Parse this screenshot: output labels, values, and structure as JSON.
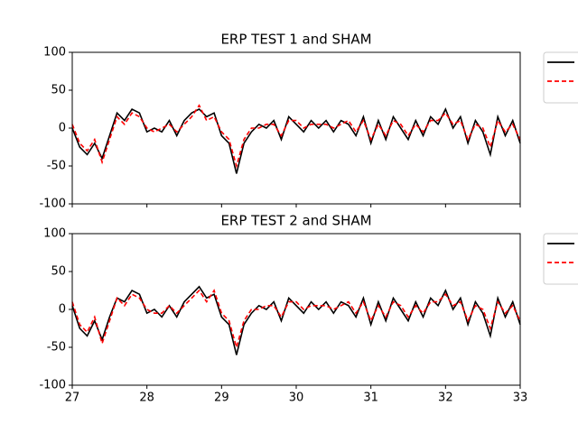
{
  "chart_data": [
    {
      "type": "line",
      "title": "ERP TEST 1 and SHAM",
      "sharex": true,
      "x": [
        27,
        27.1,
        27.2,
        27.3,
        27.4,
        27.5,
        27.6,
        27.7,
        27.8,
        27.9,
        28,
        28.1,
        28.2,
        28.3,
        28.4,
        28.5,
        28.6,
        28.7,
        28.8,
        28.9,
        29,
        29.1,
        29.2,
        29.3,
        29.4,
        29.5,
        29.6,
        29.7,
        29.8,
        29.9,
        30,
        30.1,
        30.2,
        30.3,
        30.4,
        30.5,
        30.6,
        30.7,
        30.8,
        30.9,
        31,
        31.1,
        31.2,
        31.3,
        31.4,
        31.5,
        31.6,
        31.7,
        31.8,
        31.9,
        32,
        32.1,
        32.2,
        32.3,
        32.4,
        32.5,
        32.6,
        32.7,
        32.8,
        32.9,
        33
      ],
      "series": [
        {
          "color": "#000000",
          "dash": false,
          "values": [
            0,
            -25,
            -35,
            -20,
            -40,
            -10,
            20,
            10,
            25,
            20,
            -5,
            0,
            -5,
            10,
            -10,
            10,
            20,
            25,
            15,
            20,
            -10,
            -20,
            -60,
            -20,
            -5,
            5,
            0,
            10,
            -15,
            15,
            5,
            -5,
            10,
            0,
            10,
            -5,
            10,
            5,
            -10,
            15,
            -20,
            10,
            -15,
            15,
            0,
            -15,
            10,
            -10,
            15,
            5,
            25,
            0,
            15,
            -20,
            10,
            -5,
            -35,
            15,
            -10,
            10,
            -20
          ]
        },
        {
          "color": "#ff0000",
          "dash": true,
          "values": [
            5,
            -20,
            -30,
            -15,
            -45,
            -15,
            15,
            5,
            20,
            15,
            0,
            -5,
            0,
            5,
            -5,
            5,
            15,
            30,
            10,
            15,
            -5,
            -15,
            -50,
            -15,
            0,
            0,
            5,
            5,
            -10,
            10,
            10,
            0,
            5,
            5,
            5,
            0,
            5,
            10,
            -5,
            10,
            -15,
            5,
            -10,
            10,
            5,
            -10,
            5,
            -5,
            10,
            10,
            20,
            5,
            10,
            -15,
            5,
            0,
            -25,
            10,
            -5,
            5,
            -15
          ]
        }
      ],
      "xlim": [
        27,
        33
      ],
      "ylim": [
        -100,
        100
      ],
      "yticks": [
        -100,
        -50,
        0,
        50,
        100
      ]
    },
    {
      "type": "line",
      "title": "ERP TEST 2 and SHAM",
      "x": [
        27,
        27.1,
        27.2,
        27.3,
        27.4,
        27.5,
        27.6,
        27.7,
        27.8,
        27.9,
        28,
        28.1,
        28.2,
        28.3,
        28.4,
        28.5,
        28.6,
        28.7,
        28.8,
        28.9,
        29,
        29.1,
        29.2,
        29.3,
        29.4,
        29.5,
        29.6,
        29.7,
        29.8,
        29.9,
        30,
        30.1,
        30.2,
        30.3,
        30.4,
        30.5,
        30.6,
        30.7,
        30.8,
        30.9,
        31,
        31.1,
        31.2,
        31.3,
        31.4,
        31.5,
        31.6,
        31.7,
        31.8,
        31.9,
        32,
        32.1,
        32.2,
        32.3,
        32.4,
        32.5,
        32.6,
        32.7,
        32.8,
        32.9,
        33
      ],
      "series": [
        {
          "color": "#000000",
          "dash": false,
          "values": [
            5,
            -25,
            -35,
            -15,
            -40,
            -10,
            15,
            10,
            25,
            20,
            -5,
            0,
            -10,
            5,
            -10,
            10,
            20,
            30,
            15,
            20,
            -10,
            -20,
            -60,
            -20,
            -5,
            5,
            0,
            10,
            -15,
            15,
            5,
            -5,
            10,
            0,
            10,
            -5,
            10,
            5,
            -10,
            15,
            -20,
            10,
            -15,
            15,
            0,
            -15,
            10,
            -10,
            15,
            5,
            25,
            0,
            15,
            -20,
            10,
            -5,
            -35,
            15,
            -10,
            10,
            -20
          ]
        },
        {
          "color": "#ff0000",
          "dash": true,
          "values": [
            10,
            -20,
            -30,
            -10,
            -45,
            -15,
            15,
            5,
            20,
            15,
            0,
            -5,
            -5,
            5,
            -5,
            5,
            15,
            25,
            10,
            25,
            -5,
            -15,
            -50,
            -15,
            0,
            0,
            5,
            5,
            -10,
            10,
            10,
            0,
            5,
            5,
            5,
            0,
            5,
            10,
            -5,
            10,
            -15,
            5,
            -10,
            10,
            5,
            -10,
            5,
            -5,
            10,
            10,
            20,
            5,
            10,
            -15,
            5,
            0,
            -25,
            10,
            -5,
            5,
            -15
          ]
        }
      ],
      "xlim": [
        27,
        33
      ],
      "ylim": [
        -100,
        100
      ],
      "yticks": [
        -100,
        -50,
        0,
        50,
        100
      ],
      "xticks": [
        27,
        28,
        29,
        30,
        31,
        32,
        33
      ]
    }
  ]
}
